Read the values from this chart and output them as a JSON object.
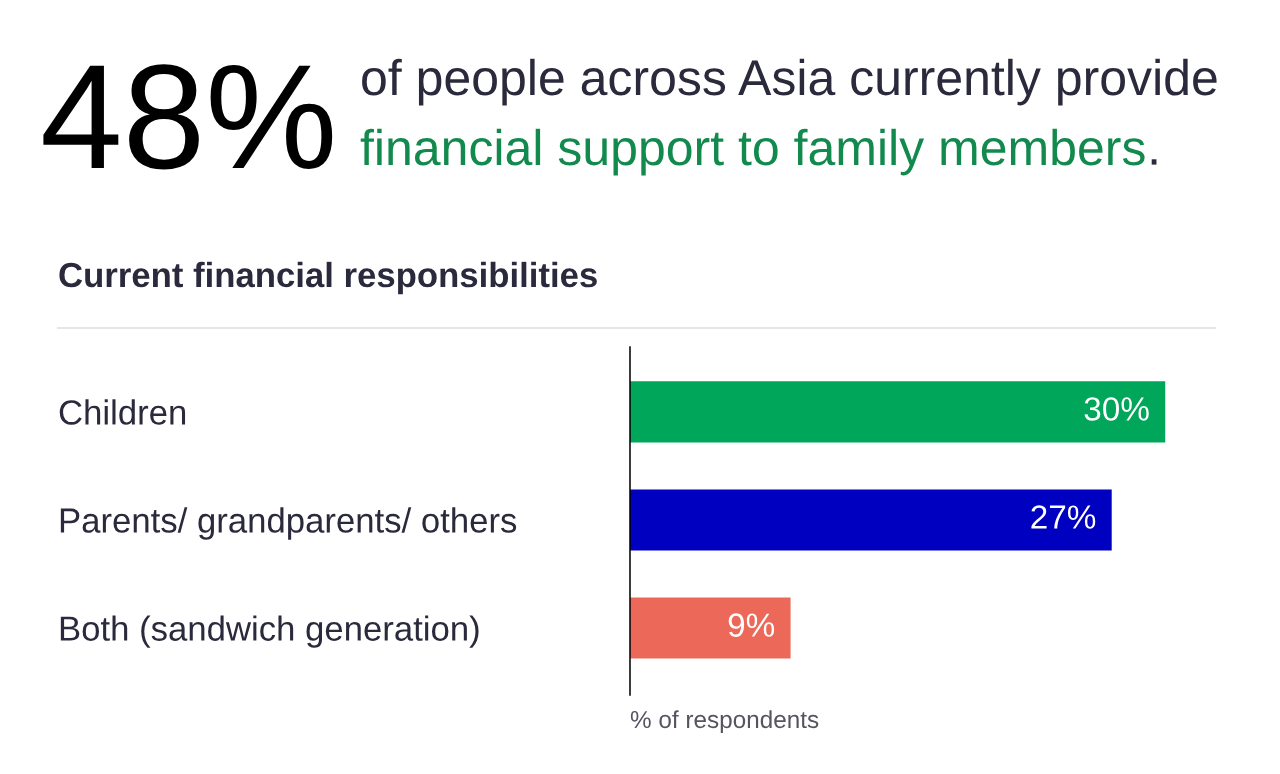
{
  "chart_data": {
    "type": "bar",
    "orientation": "horizontal",
    "annotations": [
      "48%",
      "of people across Asia currently provide",
      "financial support to family members",
      "."
    ],
    "title": "Current financial responsibilities",
    "categories": [
      "Children",
      "Parents/ grandparents/ others",
      "Both (sandwich generation)"
    ],
    "values": [
      30,
      27,
      9
    ],
    "colors": [
      "#00a65a",
      "#0000c0",
      "#ec6959"
    ],
    "value_labels": [
      "30%",
      "27%",
      "9%"
    ],
    "xlabel": "% of respondents",
    "tick_labels": "y",
    "grid": false,
    "legend": false
  }
}
